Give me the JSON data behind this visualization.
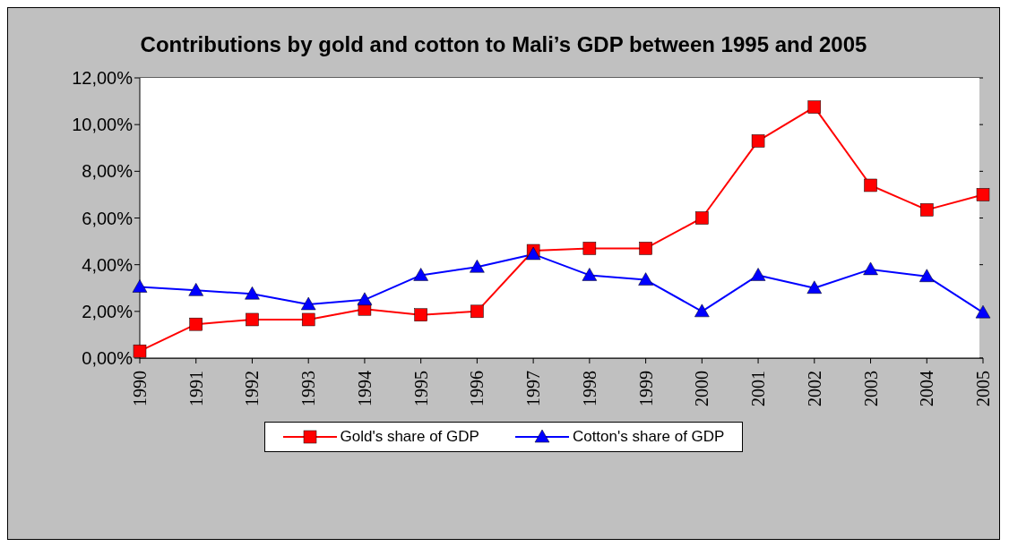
{
  "chart_data": {
    "type": "line",
    "title": "Contributions by gold and cotton to Mali’s GDP between 1995 and 2005",
    "categories": [
      "1990",
      "1991",
      "1992",
      "1993",
      "1994",
      "1995",
      "1996",
      "1997",
      "1998",
      "1999",
      "2000",
      "2001",
      "2002",
      "2003",
      "2004",
      "2005"
    ],
    "series": [
      {
        "name": "Gold's share of GDP",
        "color": "#ff0000",
        "marker": "square",
        "values": [
          0.3,
          1.45,
          1.65,
          1.65,
          2.1,
          1.85,
          2.0,
          4.6,
          4.7,
          4.7,
          6.0,
          9.3,
          10.75,
          7.4,
          6.35,
          7.0
        ]
      },
      {
        "name": "Cotton's share of GDP",
        "color": "#0000ff",
        "marker": "triangle",
        "values": [
          3.05,
          2.9,
          2.75,
          2.3,
          2.5,
          3.55,
          3.9,
          4.45,
          3.55,
          3.35,
          2.0,
          3.55,
          3.0,
          3.8,
          3.5,
          1.95
        ]
      }
    ],
    "ylim": [
      0,
      12
    ],
    "yticks": [
      {
        "value": 0,
        "label": "0,00%"
      },
      {
        "value": 2,
        "label": "2,00%"
      },
      {
        "value": 4,
        "label": "4,00%"
      },
      {
        "value": 6,
        "label": "6,00%"
      },
      {
        "value": 8,
        "label": "8,00%"
      },
      {
        "value": 10,
        "label": "10,00%"
      },
      {
        "value": 12,
        "label": "12,00%"
      }
    ],
    "grid": "y",
    "legend": "bottom"
  }
}
